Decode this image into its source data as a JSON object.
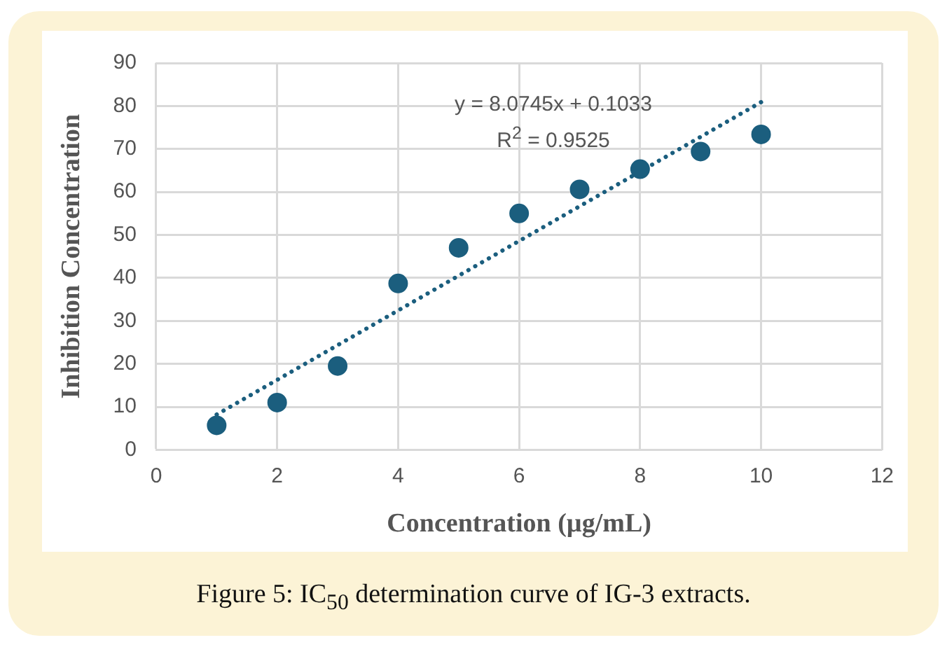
{
  "chart_data": {
    "type": "scatter",
    "xlabel": "Concentration (µg/mL)",
    "ylabel": "Inhibition Concentration",
    "x": [
      1,
      2,
      3,
      4,
      5,
      6,
      7,
      8,
      9,
      10
    ],
    "series": [
      {
        "color": "#1b5e7e",
        "values": [
          5.7,
          11,
          19.5,
          38.7,
          47,
          55,
          60.6,
          65.3,
          69.4,
          73.4
        ],
        "marker": "circle"
      },
      {
        "type": "line",
        "color": "#1b5e7e",
        "x": [
          1,
          10
        ],
        "values": [
          8.2,
          80.9
        ],
        "line_style": "dotted",
        "marker": "none"
      }
    ],
    "xlim": [
      0,
      12
    ],
    "xticks": [
      0,
      2,
      4,
      6,
      8,
      10,
      12
    ],
    "ylim": [
      0,
      90
    ],
    "yticks": [
      0,
      10,
      20,
      30,
      40,
      50,
      60,
      70,
      80,
      90
    ],
    "grid": true,
    "legend": false,
    "annotations": [
      "y = 8.0745x + 0.1033",
      "R$^{2}$ = 0.9525",
      "Figure 5: IC$_{50}$ determination curve of IG-3 extracts."
    ]
  }
}
